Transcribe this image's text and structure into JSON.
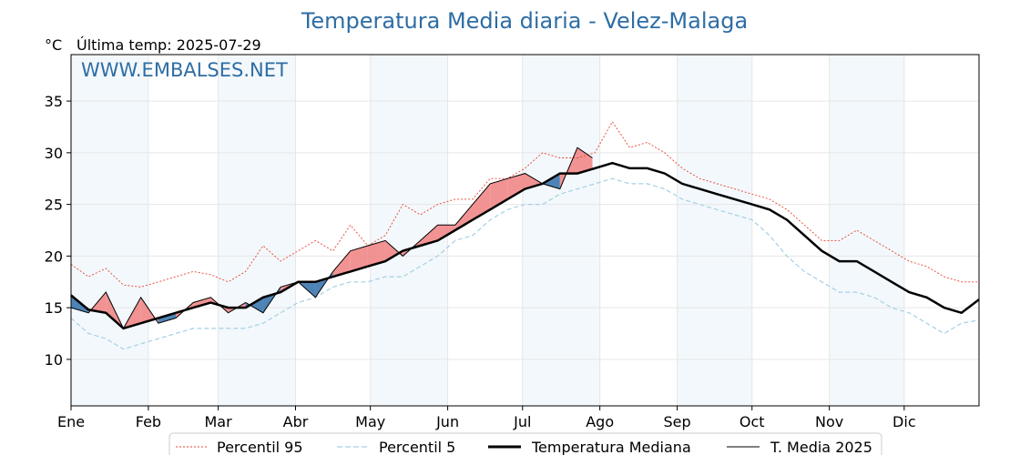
{
  "chart_data": {
    "type": "line",
    "title": "Temperatura Media diaria - Velez-Malaga",
    "unit_label": "°C",
    "last_temp_label": "Última temp: 2025-07-29",
    "watermark": "WWW.EMBALSES.NET",
    "ylim": [
      5.5,
      39.5
    ],
    "y_ticks": [
      10,
      15,
      20,
      25,
      30,
      35
    ],
    "x_months": [
      "Ene",
      "Feb",
      "Mar",
      "Abr",
      "May",
      "Jun",
      "Jul",
      "Ago",
      "Sep",
      "Oct",
      "Nov",
      "Dic"
    ],
    "month_start_days": [
      1,
      32,
      60,
      91,
      121,
      152,
      182,
      213,
      244,
      274,
      305,
      335
    ],
    "days_in_year": 365,
    "grid": true,
    "legend_position": "bottom",
    "x_days": [
      1,
      8,
      15,
      22,
      29,
      36,
      43,
      50,
      57,
      64,
      71,
      78,
      85,
      92,
      99,
      106,
      113,
      120,
      127,
      134,
      141,
      148,
      155,
      162,
      169,
      176,
      183,
      190,
      197,
      204,
      211,
      218,
      225,
      232,
      239,
      246,
      253,
      260,
      267,
      274,
      281,
      288,
      295,
      302,
      309,
      316,
      323,
      330,
      337,
      344,
      351,
      358,
      365
    ],
    "series": [
      {
        "name": "Percentil 95",
        "color": "#e8432e",
        "style": "dotted",
        "values": [
          19.2,
          18.0,
          18.8,
          17.2,
          17.0,
          17.5,
          18.0,
          18.5,
          18.2,
          17.5,
          18.5,
          21.0,
          19.5,
          20.5,
          21.5,
          20.5,
          23.0,
          21.0,
          22.0,
          25.0,
          24.0,
          25.0,
          25.5,
          25.5,
          27.5,
          27.5,
          28.5,
          30.0,
          29.5,
          29.5,
          30.0,
          33.0,
          30.5,
          31.0,
          30.0,
          28.5,
          27.5,
          27.0,
          26.5,
          26.0,
          25.5,
          24.5,
          23.0,
          21.5,
          21.5,
          22.5,
          21.5,
          20.5,
          19.5,
          19.0,
          18.0,
          17.5,
          17.5
        ]
      },
      {
        "name": "Percentil 5",
        "color": "#a6d0e4",
        "style": "dashed",
        "values": [
          14.0,
          12.5,
          12.0,
          11.0,
          11.5,
          12.0,
          12.5,
          13.0,
          13.0,
          13.0,
          13.0,
          13.5,
          14.5,
          15.5,
          16.0,
          17.0,
          17.5,
          17.5,
          18.0,
          18.0,
          19.0,
          20.0,
          21.5,
          22.0,
          23.5,
          24.5,
          25.0,
          25.0,
          26.0,
          26.5,
          27.0,
          27.5,
          27.0,
          27.0,
          26.5,
          25.5,
          25.0,
          24.5,
          24.0,
          23.5,
          22.0,
          20.0,
          18.5,
          17.5,
          16.5,
          16.5,
          16.0,
          15.0,
          14.5,
          13.5,
          12.5,
          13.5,
          13.8
        ]
      },
      {
        "name": "Temperatura Mediana",
        "color": "#000000",
        "style": "thick",
        "values": [
          16.2,
          14.8,
          14.5,
          13.0,
          13.5,
          14.0,
          14.5,
          15.0,
          15.5,
          15.0,
          15.0,
          16.0,
          16.5,
          17.5,
          17.5,
          18.0,
          18.5,
          19.0,
          19.5,
          20.5,
          21.0,
          21.5,
          22.5,
          23.5,
          24.5,
          25.5,
          26.5,
          27.0,
          28.0,
          28.0,
          28.5,
          29.0,
          28.5,
          28.5,
          28.0,
          27.0,
          26.5,
          26.0,
          25.5,
          25.0,
          24.5,
          23.5,
          22.0,
          20.5,
          19.5,
          19.5,
          18.5,
          17.5,
          16.5,
          16.0,
          15.0,
          14.5,
          15.8
        ]
      },
      {
        "name": "T. Media 2025",
        "color": "#000000",
        "style": "thin",
        "x_days": [
          1,
          8,
          15,
          22,
          29,
          36,
          43,
          50,
          57,
          64,
          71,
          78,
          85,
          92,
          99,
          106,
          113,
          120,
          127,
          134,
          141,
          148,
          155,
          162,
          169,
          176,
          183,
          190,
          197,
          204,
          210
        ],
        "values": [
          15.0,
          14.5,
          16.5,
          13.0,
          16.0,
          13.5,
          14.0,
          15.5,
          16.0,
          14.5,
          15.5,
          14.5,
          17.0,
          17.5,
          16.0,
          18.5,
          20.5,
          21.0,
          21.5,
          20.0,
          21.5,
          23.0,
          23.0,
          25.0,
          27.0,
          27.5,
          28.0,
          27.0,
          26.5,
          30.5,
          29.5
        ]
      }
    ],
    "fill_above_color": "#f08080",
    "fill_below_color": "#2f6ea8"
  }
}
